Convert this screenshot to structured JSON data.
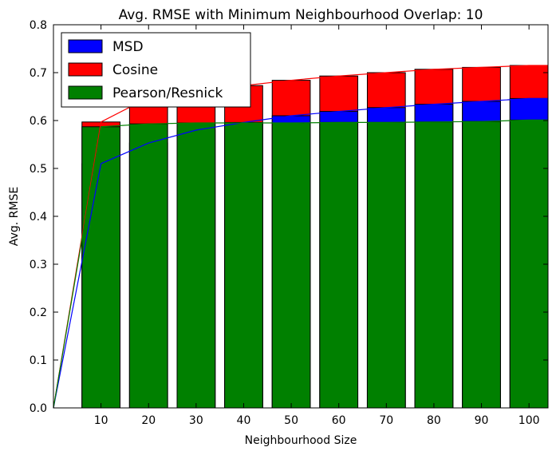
{
  "chart_data": {
    "type": "bar",
    "title": "Avg. RMSE with Minimum Neighbourhood Overlap: 10",
    "xlabel": "Neighbourhood Size",
    "ylabel": "Avg. RMSE",
    "xlim": [
      0,
      104
    ],
    "ylim": [
      0,
      0.8
    ],
    "grid": false,
    "legend_position": "top-left",
    "x_ticks": [
      "10",
      "20",
      "30",
      "40",
      "50",
      "60",
      "70",
      "80",
      "90",
      "100"
    ],
    "y_ticks": [
      "0.0",
      "0.1",
      "0.2",
      "0.3",
      "0.4",
      "0.5",
      "0.6",
      "0.7",
      "0.8"
    ],
    "categories": [
      10,
      20,
      30,
      40,
      50,
      60,
      70,
      80,
      90,
      100
    ],
    "bar_width": 8,
    "series": [
      {
        "name": "Cosine",
        "color": "#ff0000",
        "values": [
          0.597,
          0.648,
          0.663,
          0.673,
          0.684,
          0.693,
          0.7,
          0.707,
          0.711,
          0.715
        ],
        "line": [
          [
            0,
            0
          ],
          [
            10,
            0.597
          ],
          [
            20,
            0.648
          ],
          [
            30,
            0.663
          ],
          [
            40,
            0.673
          ],
          [
            50,
            0.684
          ],
          [
            60,
            0.693
          ],
          [
            70,
            0.7
          ],
          [
            80,
            0.707
          ],
          [
            90,
            0.711
          ],
          [
            100,
            0.715
          ],
          [
            104,
            0.715
          ]
        ]
      },
      {
        "name": "MSD",
        "color": "#0000ff",
        "values": [
          0.51,
          0.553,
          0.58,
          0.596,
          0.61,
          0.619,
          0.627,
          0.634,
          0.64,
          0.646
        ],
        "line": [
          [
            0,
            0
          ],
          [
            10,
            0.51
          ],
          [
            20,
            0.553
          ],
          [
            30,
            0.58
          ],
          [
            40,
            0.596
          ],
          [
            50,
            0.61
          ],
          [
            60,
            0.619
          ],
          [
            70,
            0.627
          ],
          [
            80,
            0.634
          ],
          [
            90,
            0.64
          ],
          [
            100,
            0.646
          ],
          [
            104,
            0.646
          ]
        ]
      },
      {
        "name": "Pearson/Resnick",
        "color": "#008000",
        "values": [
          0.587,
          0.593,
          0.595,
          0.595,
          0.595,
          0.596,
          0.596,
          0.597,
          0.598,
          0.601
        ],
        "line": [
          [
            0,
            0
          ],
          [
            10,
            0.587
          ],
          [
            20,
            0.593
          ],
          [
            30,
            0.595
          ],
          [
            40,
            0.595
          ],
          [
            50,
            0.595
          ],
          [
            60,
            0.596
          ],
          [
            70,
            0.596
          ],
          [
            80,
            0.597
          ],
          [
            90,
            0.598
          ],
          [
            100,
            0.601
          ],
          [
            104,
            0.601
          ]
        ]
      }
    ],
    "legend": [
      "MSD",
      "Cosine",
      "Pearson/Resnick"
    ]
  }
}
